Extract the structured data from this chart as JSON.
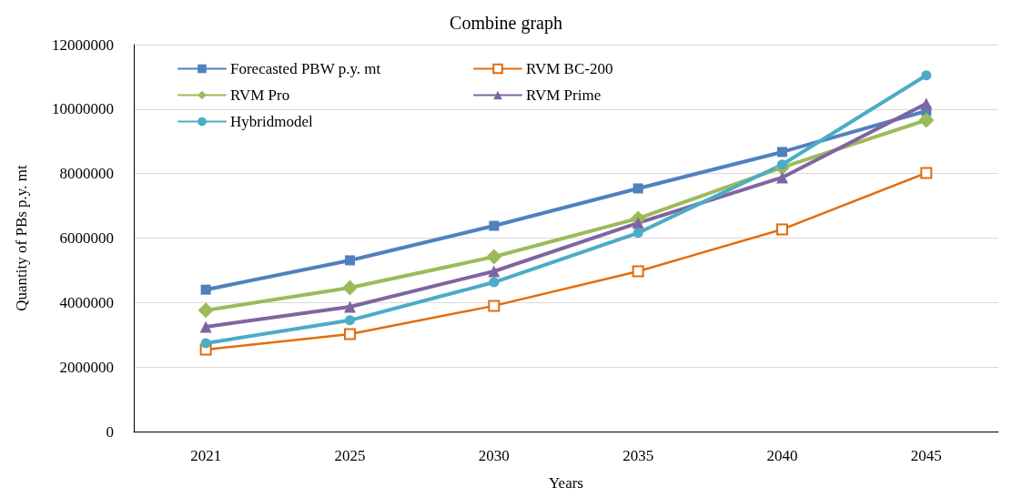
{
  "chart_data": {
    "type": "line",
    "title": "Combine graph",
    "xlabel": "Years",
    "ylabel": "Quantity of PBs p.y. mt",
    "categories": [
      "2021",
      "2025",
      "2030",
      "2035",
      "2040",
      "2045"
    ],
    "ylim": [
      0,
      12000000
    ],
    "yticks": [
      0,
      2000000,
      4000000,
      6000000,
      8000000,
      10000000,
      12000000
    ],
    "grid": "y",
    "legend": "top left",
    "series": [
      {
        "name": "Forecasted PBW p.y. mt",
        "color": "#4f81bd",
        "marker": "square",
        "values": [
          4400000,
          5310000,
          6380000,
          7540000,
          8670000,
          9940000
        ]
      },
      {
        "name": "RVM BC-200",
        "color": "#e36c0a",
        "marker": "square",
        "values": [
          2540000,
          3020000,
          3900000,
          4970000,
          6270000,
          8020000
        ]
      },
      {
        "name": "RVM Pro",
        "color": "#9bbb59",
        "marker": "diamond",
        "values": [
          3760000,
          4460000,
          5420000,
          6610000,
          8190000,
          9660000
        ]
      },
      {
        "name": "RVM Prime",
        "color": "#8064a2",
        "marker": "triangle",
        "values": [
          3250000,
          3870000,
          4970000,
          6470000,
          7880000,
          10170000
        ]
      },
      {
        "name": "Hybridmodel",
        "color": "#4bacc6",
        "marker": "circle",
        "values": [
          2740000,
          3450000,
          4630000,
          6160000,
          8280000,
          11050000
        ]
      }
    ]
  }
}
